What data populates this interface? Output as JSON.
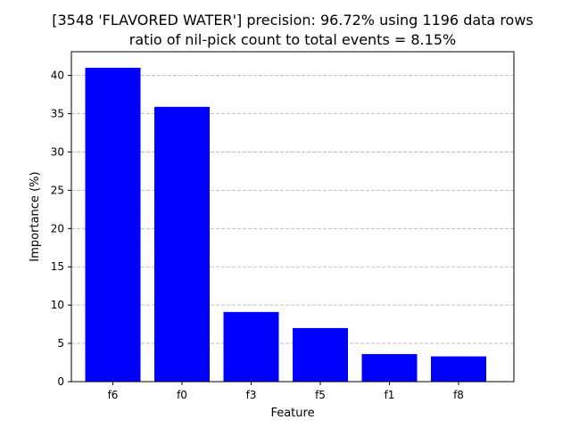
{
  "chart_data": {
    "type": "bar",
    "title": "[3548 'FLAVORED WATER'] precision: 96.72% using 1196 data rows",
    "subtitle": "ratio of nil-pick count to total events = 8.15%",
    "xlabel": "Feature",
    "ylabel": "Importance (%)",
    "categories": [
      "f6",
      "f0",
      "f3",
      "f5",
      "f1",
      "f8"
    ],
    "values": [
      41.0,
      35.9,
      9.1,
      7.0,
      3.6,
      3.3
    ],
    "ylim": [
      0,
      43.1
    ],
    "yticks": [
      0,
      5,
      10,
      15,
      20,
      25,
      30,
      35,
      40
    ],
    "grid": "y-dashed",
    "bar_color": "#0000ff",
    "grid_color": "#b0b0b0"
  }
}
